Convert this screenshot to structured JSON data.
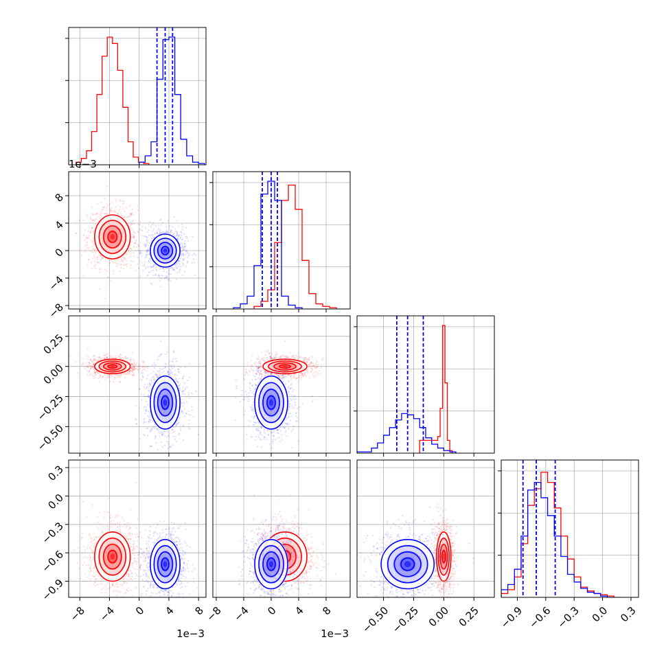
{
  "colors": {
    "red": "#ff0000",
    "blue": "#0000ff",
    "grid": "#b0b0b0",
    "axis": "#000000"
  },
  "chart_data": {
    "type": "corner",
    "grid": true,
    "parameters": [
      {
        "range": [
          -9.5,
          9
        ],
        "ticks": [
          -8,
          -4,
          0,
          4,
          8
        ],
        "tick_labels": [
          "−8",
          "−4",
          "0",
          "4",
          "8"
        ],
        "scale_label": "1e−3"
      },
      {
        "range": [
          -8.5,
          11.5
        ],
        "ticks": [
          -8,
          -4,
          0,
          4,
          8
        ],
        "tick_labels": [
          "−8",
          "−4",
          "0",
          "4",
          "8"
        ],
        "scale_label": "1e−3"
      },
      {
        "range": [
          -0.72,
          0.42
        ],
        "ticks": [
          -0.5,
          -0.25,
          0,
          0.25
        ],
        "tick_labels": [
          "−0.50",
          "−0.25",
          "0.00",
          "0.25"
        ]
      },
      {
        "range": [
          -1.07,
          0.38
        ],
        "ticks": [
          -0.9,
          -0.6,
          -0.3,
          0,
          0.3
        ],
        "tick_labels": [
          "−0.9",
          "−0.6",
          "−0.3",
          "0.0",
          "0.3"
        ]
      }
    ],
    "offset_labels": [
      {
        "panel": "row0",
        "text": "1e−3"
      },
      {
        "panel": "bottom-col0",
        "text": "1e−3"
      },
      {
        "panel": "bottom-col1",
        "text": "1e−3"
      }
    ],
    "series": [
      {
        "color": "red",
        "means": [
          -3.6,
          2.0,
          0.0,
          -0.64
        ],
        "stds": [
          1.2,
          1.6,
          0.03,
          0.13
        ],
        "histograms": [
          {
            "edges": [
              -8.5,
              -7.8,
              -7.1,
              -6.4,
              -5.7,
              -5.0,
              -4.3,
              -3.6,
              -2.9,
              -2.2,
              -1.5,
              -0.8,
              -0.1,
              0.6,
              1.3
            ],
            "counts": [
              0.02,
              0.05,
              0.11,
              0.26,
              0.55,
              0.85,
              1.0,
              0.95,
              0.74,
              0.45,
              0.18,
              0.06,
              0.02,
              0.01
            ]
          },
          {
            "edges": [
              -2.5,
              -1.5,
              -0.5,
              0.5,
              1.5,
              2.5,
              3.5,
              4.5,
              5.5,
              6.5,
              7.5,
              8.5,
              9.5
            ],
            "counts": [
              0.02,
              0.06,
              0.15,
              0.52,
              0.85,
              0.97,
              0.78,
              0.38,
              0.12,
              0.04,
              0.02,
              0.01
            ]
          },
          {
            "edges": [
              -0.2,
              -0.05,
              -0.03,
              -0.01,
              0.01,
              0.03,
              0.05,
              0.07
            ],
            "counts": [
              0.1,
              0.13,
              0.35,
              1.0,
              0.55,
              0.1,
              0.02
            ]
          },
          {
            "edges": [
              -1.07,
              -1.0,
              -0.93,
              -0.86,
              -0.79,
              -0.72,
              -0.65,
              -0.58,
              -0.51,
              -0.44,
              -0.37,
              -0.3,
              -0.23,
              -0.16,
              -0.09,
              -0.02,
              0.05,
              0.12,
              0.19
            ],
            "counts": [
              0.03,
              0.06,
              0.16,
              0.42,
              0.72,
              0.85,
              0.98,
              0.9,
              0.7,
              0.48,
              0.3,
              0.16,
              0.08,
              0.05,
              0.03,
              0.02,
              0.01,
              0.0
            ]
          }
        ]
      },
      {
        "color": "blue",
        "means": [
          3.5,
          0.0,
          -0.3,
          -0.72
        ],
        "stds": [
          1.0,
          1.2,
          0.11,
          0.13
        ],
        "histograms": [
          {
            "edges": [
              0.0,
              0.8,
              1.6,
              2.4,
              3.2,
              4.0,
              4.8,
              5.6,
              6.4,
              7.2,
              8.0,
              8.8
            ],
            "counts": [
              0.02,
              0.07,
              0.18,
              0.67,
              0.98,
              1.0,
              0.55,
              0.2,
              0.07,
              0.02,
              0.01
            ]
          },
          {
            "edges": [
              -5.5,
              -4.5,
              -3.5,
              -2.5,
              -1.5,
              -0.5,
              0.5,
              1.5,
              2.5,
              3.5,
              4.5
            ],
            "counts": [
              0.01,
              0.04,
              0.1,
              0.34,
              0.9,
              1.0,
              0.85,
              0.1,
              0.03,
              0.01
            ]
          },
          {
            "edges": [
              -0.72,
              -0.6,
              -0.55,
              -0.5,
              -0.45,
              -0.4,
              -0.35,
              -0.3,
              -0.25,
              -0.2,
              -0.15,
              -0.1,
              -0.05,
              0.0,
              0.05,
              0.1
            ],
            "counts": [
              0.01,
              0.04,
              0.08,
              0.14,
              0.2,
              0.26,
              0.31,
              0.3,
              0.27,
              0.2,
              0.12,
              0.07,
              0.04,
              0.02,
              0.01
            ]
          },
          {
            "edges": [
              -1.07,
              -1.0,
              -0.93,
              -0.86,
              -0.79,
              -0.72,
              -0.65,
              -0.58,
              -0.51,
              -0.44,
              -0.37,
              -0.3,
              -0.23,
              -0.16,
              -0.09,
              -0.02,
              0.05,
              0.12
            ],
            "counts": [
              0.06,
              0.1,
              0.22,
              0.48,
              0.84,
              0.9,
              0.78,
              0.64,
              0.48,
              0.32,
              0.18,
              0.12,
              0.07,
              0.04,
              0.03,
              0.01,
              0.0
            ]
          }
        ]
      }
    ],
    "quantile_lines": {
      "color": "blue",
      "style": "dashed",
      "per_parameter": [
        [
          2.4,
          3.5,
          4.5
        ],
        [
          -1.3,
          0.0,
          0.9
        ],
        [
          -0.39,
          -0.3,
          -0.17
        ],
        [
          -0.84,
          -0.7,
          -0.5
        ]
      ]
    }
  }
}
